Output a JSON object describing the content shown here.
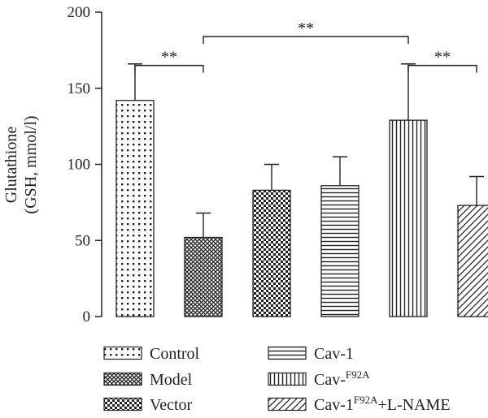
{
  "chart_data": {
    "type": "bar",
    "ylabel_line1": "Glutathione",
    "ylabel_line2": "(GSH, mmol/l)",
    "ylim": [
      0,
      200
    ],
    "yticks": [
      0,
      50,
      100,
      150,
      200
    ],
    "categories": [
      "Control",
      "Model",
      "Vector",
      "Cav-1",
      "Cav-F92A",
      "Cav-1F92A+L-NAME"
    ],
    "values": [
      142,
      52,
      83,
      86,
      129,
      73
    ],
    "errors": [
      24,
      16,
      17,
      19,
      37,
      19
    ],
    "patterns": [
      "dots",
      "crosshatch",
      "checker",
      "hlines",
      "vlines",
      "diagonal"
    ],
    "significance": [
      {
        "from": 0,
        "to": 1,
        "label": "**",
        "level": 165
      },
      {
        "from": 1,
        "to": 4,
        "label": "**",
        "level": 184
      },
      {
        "from": 4,
        "to": 5,
        "label": "**",
        "level": 165
      }
    ],
    "legend": [
      {
        "base": "Control",
        "sup": "",
        "suffix": "",
        "pattern": "dots"
      },
      {
        "base": "Cav-1",
        "sup": "",
        "suffix": "",
        "pattern": "hlines"
      },
      {
        "base": "Model",
        "sup": "",
        "suffix": "",
        "pattern": "crosshatch"
      },
      {
        "base": "Cav-",
        "sup": "F92A",
        "suffix": "",
        "pattern": "vlines"
      },
      {
        "base": "Vector",
        "sup": "",
        "suffix": "",
        "pattern": "checker"
      },
      {
        "base": "Cav-1",
        "sup": "F92A",
        "suffix": "+L-NAME",
        "pattern": "diagonal"
      }
    ],
    "grid": false,
    "legend_position": "bottom"
  }
}
